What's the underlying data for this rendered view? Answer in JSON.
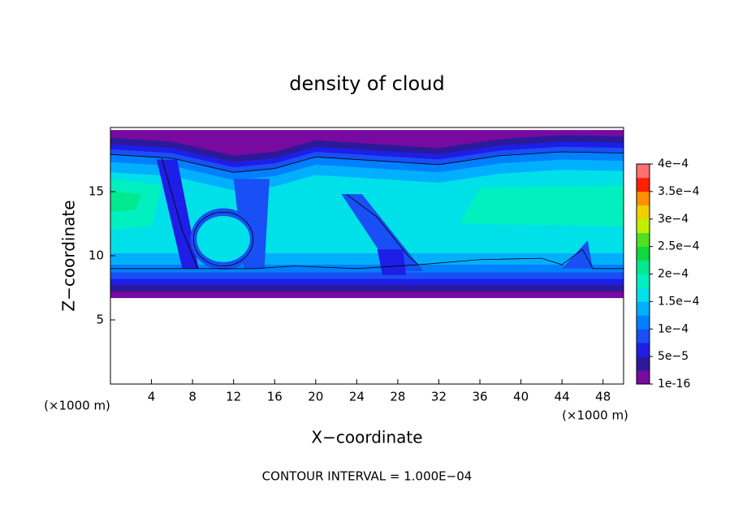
{
  "chart_data": {
    "type": "contour",
    "title": "density of cloud",
    "xlabel": "X−coordinate",
    "ylabel": "Z−coordinate",
    "x_unit_label": "(×1000 m)",
    "y_unit_label": "(×1000 m)",
    "annotation": "CONTOUR INTERVAL = 1.000E−04",
    "xlim": [
      0,
      50
    ],
    "xticks": [
      4,
      8,
      12,
      16,
      20,
      24,
      28,
      32,
      36,
      40,
      44,
      48
    ],
    "ylim": [
      0,
      20
    ],
    "yticks": [
      5,
      10,
      15
    ],
    "colorbar": {
      "lim": [
        0,
        0.0004
      ],
      "ticks": [
        1e-16,
        {
          "value": 5e-05,
          "label": "5e−5"
        },
        {
          "value": 0.0001,
          "label": "1e−4"
        },
        {
          "value": 0.00015,
          "label": "1.5e−4"
        },
        {
          "value": 0.0002,
          "label": "2e−4"
        },
        {
          "value": 0.00025,
          "label": "2.5e−4"
        },
        {
          "value": 0.0003,
          "label": "3e−4"
        },
        {
          "value": 0.00035,
          "label": "3.5e−4"
        },
        {
          "value": 0.0004,
          "label": "4e−4"
        }
      ],
      "colors": [
        "#780aa0",
        "#2a1a9a",
        "#1e1ee6",
        "#1850f5",
        "#0080ff",
        "#00b0ff",
        "#00e0e8",
        "#00f0c0",
        "#00e890",
        "#10d840",
        "#50e020",
        "#c0f000",
        "#f0d000",
        "#ff9000",
        "#ff2000",
        "#ff7070"
      ]
    }
  }
}
